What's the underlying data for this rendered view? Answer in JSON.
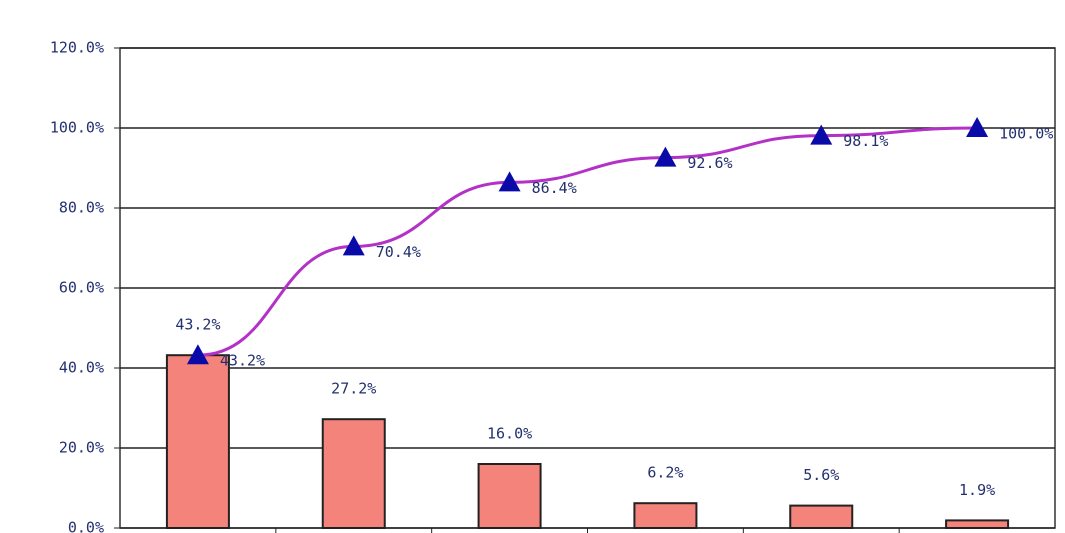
{
  "chart_data": {
    "type": "bar",
    "categories": [
      null,
      null,
      null,
      null,
      null,
      null
    ],
    "series": [
      {
        "type": "bar",
        "color": "#f4837b",
        "values": [
          43.2,
          27.2,
          16.0,
          6.2,
          5.6,
          1.9
        ],
        "value_labels": [
          "43.2%",
          "27.2%",
          "16.0%",
          "6.2%",
          "5.6%",
          "1.9%"
        ]
      },
      {
        "type": "line",
        "color": "#b431c8",
        "marker_color": "#0a0aa8",
        "values": [
          43.2,
          70.4,
          86.4,
          92.6,
          98.1,
          100.0
        ],
        "value_labels": [
          "43.2%",
          "70.4%",
          "86.4%",
          "92.6%",
          "98.1%",
          "100.0%"
        ]
      }
    ],
    "ylim": [
      0,
      120
    ],
    "yticks": [
      {
        "value": 0,
        "label": "0.0%"
      },
      {
        "value": 20,
        "label": "20.0%"
      },
      {
        "value": 40,
        "label": "40.0%"
      },
      {
        "value": 60,
        "label": "60.0%"
      },
      {
        "value": 80,
        "label": "80.0%"
      },
      {
        "value": 100,
        "label": "100.0%"
      },
      {
        "value": 120,
        "label": "120.0%"
      }
    ],
    "grid": true
  }
}
